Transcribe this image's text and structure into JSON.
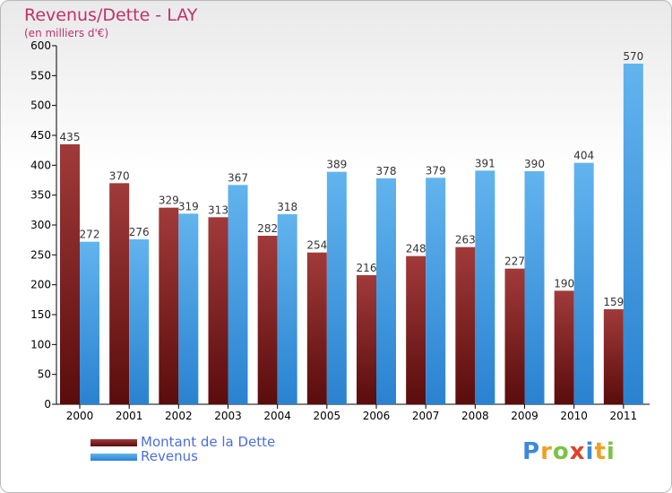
{
  "chart_data": {
    "type": "bar",
    "title": "Revenus/Dette - LAY",
    "subtitle": "(en milliers d'€)",
    "categories": [
      "2000",
      "2001",
      "2002",
      "2003",
      "2004",
      "2005",
      "2006",
      "2007",
      "2008",
      "2009",
      "2010",
      "2011"
    ],
    "series": [
      {
        "name": "Montant de la Dette",
        "color": "#7a1c1c",
        "values": [
          435,
          370,
          329,
          313,
          282,
          254,
          216,
          248,
          263,
          227,
          190,
          159
        ]
      },
      {
        "name": "Revenus",
        "color": "#4aa3e6",
        "values": [
          272,
          276,
          319,
          367,
          318,
          389,
          378,
          379,
          391,
          390,
          404,
          570
        ]
      }
    ],
    "ylim": [
      0,
      600
    ],
    "yticks": [
      0,
      50,
      100,
      150,
      200,
      250,
      300,
      350,
      400,
      450,
      500,
      550,
      600
    ],
    "grid": false,
    "legend": "bottom-left"
  },
  "branding": {
    "logo_letters": [
      "P",
      "r",
      "o",
      "x",
      "i",
      "t",
      "i"
    ],
    "logo_colors": [
      "#3b8ad9",
      "#f0a020",
      "#7cc242",
      "#e0402a",
      "#3b8ad9",
      "#f0a020",
      "#7cc242"
    ]
  }
}
